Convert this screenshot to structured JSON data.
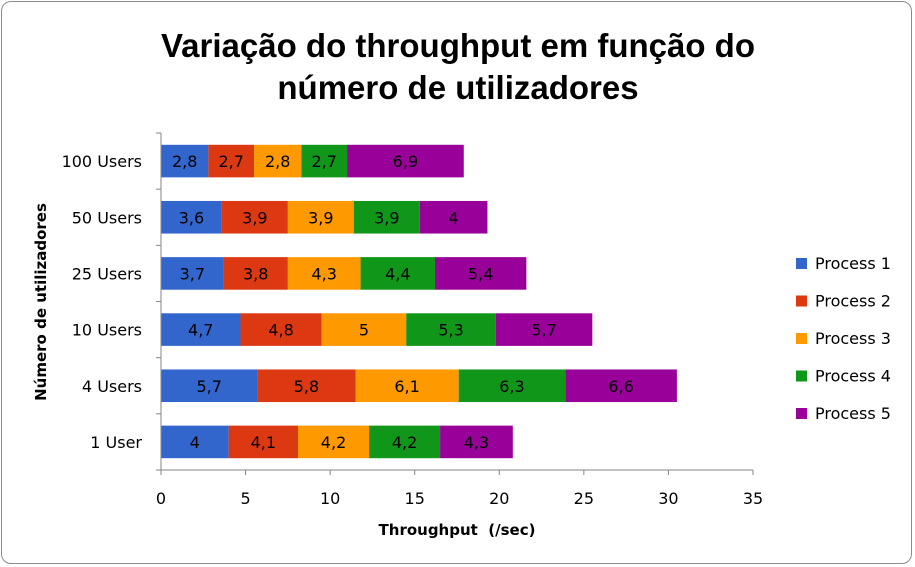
{
  "chart_data": {
    "type": "bar",
    "orientation": "horizontal",
    "stacked": true,
    "title_lines": [
      "Variação do throughput em função do",
      "número de utilizadores"
    ],
    "xlabel": "Throughput  (/sec)",
    "ylabel": "Número de utilizadores",
    "xlim": [
      0,
      35
    ],
    "xticks": [
      0,
      5,
      10,
      15,
      20,
      25,
      30,
      35
    ],
    "grid": false,
    "legend_position": "right",
    "categories": [
      "100 Users",
      "50 Users",
      "25 Users",
      "10 Users",
      "4 Users",
      "1 User"
    ],
    "series": [
      {
        "name": "Process 1",
        "color": "#3366CC",
        "values": [
          2.8,
          3.6,
          3.7,
          4.7,
          5.7,
          4.0
        ],
        "labels": [
          "2,8",
          "3,6",
          "3,7",
          "4,7",
          "5,7",
          "4"
        ]
      },
      {
        "name": "Process 2",
        "color": "#DC3912",
        "values": [
          2.7,
          3.9,
          3.8,
          4.8,
          5.8,
          4.1
        ],
        "labels": [
          "2,7",
          "3,9",
          "3,8",
          "4,8",
          "5,8",
          "4,1"
        ]
      },
      {
        "name": "Process 3",
        "color": "#FF9900",
        "values": [
          2.8,
          3.9,
          4.3,
          5.0,
          6.1,
          4.2
        ],
        "labels": [
          "2,8",
          "3,9",
          "4,3",
          "5",
          "6,1",
          "4,2"
        ]
      },
      {
        "name": "Process 4",
        "color": "#109618",
        "values": [
          2.7,
          3.9,
          4.4,
          5.3,
          6.3,
          4.2
        ],
        "labels": [
          "2,7",
          "3,9",
          "4,4",
          "5,3",
          "6,3",
          "4,2"
        ]
      },
      {
        "name": "Process 5",
        "color": "#990099",
        "values": [
          6.9,
          4.0,
          5.4,
          5.7,
          6.6,
          4.3
        ],
        "labels": [
          "6,9",
          "4",
          "5,4",
          "5,7",
          "6,6",
          "4,3"
        ]
      }
    ]
  }
}
